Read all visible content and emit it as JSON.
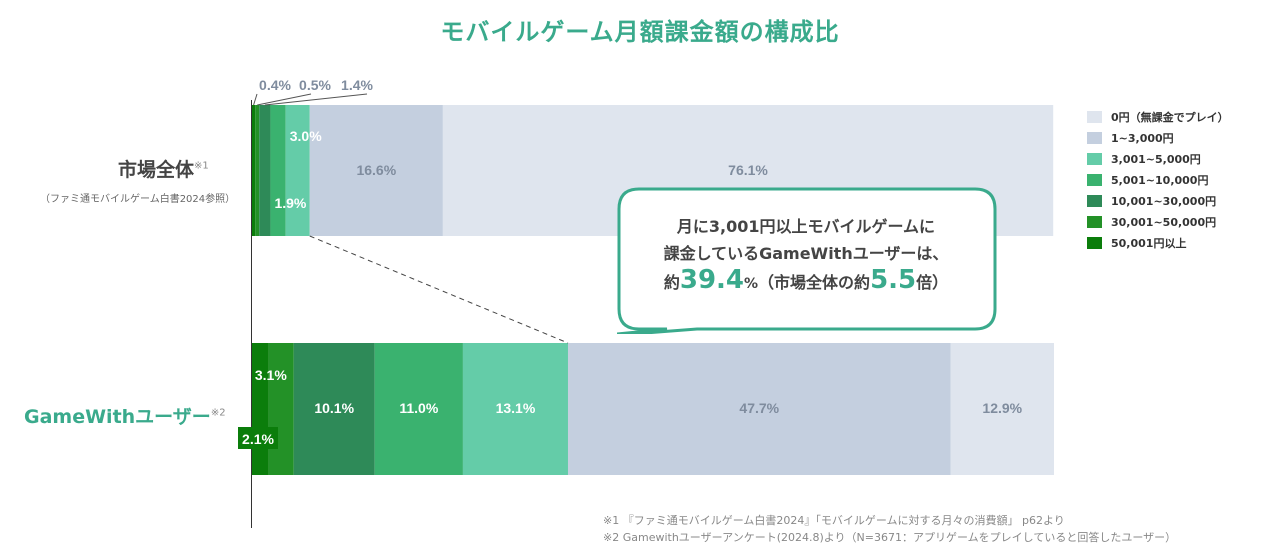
{
  "title": "モバイルゲーム月額課金額の構成比",
  "rows": {
    "market": {
      "label": "市場全体",
      "note_mark": "※1",
      "sub": "（ファミ通モバイルゲーム白書2024参照）"
    },
    "gamewith": {
      "label": "GameWithユーザー",
      "note_mark": "※2"
    }
  },
  "legend": [
    {
      "label": "0円（無課金でプレイ）",
      "color": "#dfe5ee"
    },
    {
      "label": "1~3,000円",
      "color": "#c4cfdf"
    },
    {
      "label": "3,001~5,000円",
      "color": "#64cca8"
    },
    {
      "label": "5,001~10,000円",
      "color": "#3ab26f"
    },
    {
      "label": "10,001~30,000円",
      "color": "#2e8a58"
    },
    {
      "label": "30,001~50,000円",
      "color": "#239127"
    },
    {
      "label": "50,001円以上",
      "color": "#0b7d0b"
    }
  ],
  "callout": {
    "line1": "月に3,001円以上モバイルゲームに",
    "line2": "課金しているGameWithユーザーは、",
    "pre": "約",
    "value": "39.4",
    "unit": "%",
    "mid": "（市場全体の約",
    "multiple": "5.5",
    "post": "倍）"
  },
  "footnotes": {
    "note1": "※1 『ファミ通モバイルゲーム白書2024』「モバイルゲームに対する月々の消費額」 p62より",
    "note2": "※2 Gamewithユーザーアンケート(2024.8)より（N=3671：アプリゲームをプレイしていると回答したユーザー）"
  },
  "chart_data": {
    "type": "bar",
    "orientation": "horizontal-stacked-100",
    "title": "モバイルゲーム月額課金額の構成比",
    "categories": [
      "市場全体",
      "GameWithユーザー"
    ],
    "series": [
      {
        "name": "50,001円以上",
        "values": [
          0.4,
          2.1
        ],
        "labels": [
          "0.4%",
          "2.1%"
        ]
      },
      {
        "name": "30,001~50,000円",
        "values": [
          0.5,
          3.1
        ],
        "labels": [
          "0.5%",
          "3.1%"
        ]
      },
      {
        "name": "10,001~30,000円",
        "values": [
          1.4,
          10.1
        ],
        "labels": [
          "1.4%",
          "10.1%"
        ]
      },
      {
        "name": "5,001~10,000円",
        "values": [
          1.9,
          11.0
        ],
        "labels": [
          "1.9%",
          "11.0%"
        ]
      },
      {
        "name": "3,001~5,000円",
        "values": [
          3.0,
          13.1
        ],
        "labels": [
          "3.0%",
          "13.1%"
        ]
      },
      {
        "name": "1~3,000円",
        "values": [
          16.6,
          47.7
        ],
        "labels": [
          "16.6%",
          "47.7%"
        ]
      },
      {
        "name": "0円（無課金でプレイ）",
        "values": [
          76.1,
          12.9
        ],
        "labels": [
          "76.1%",
          "12.9%"
        ]
      }
    ],
    "xlim": [
      0,
      100
    ],
    "legend_position": "right"
  }
}
